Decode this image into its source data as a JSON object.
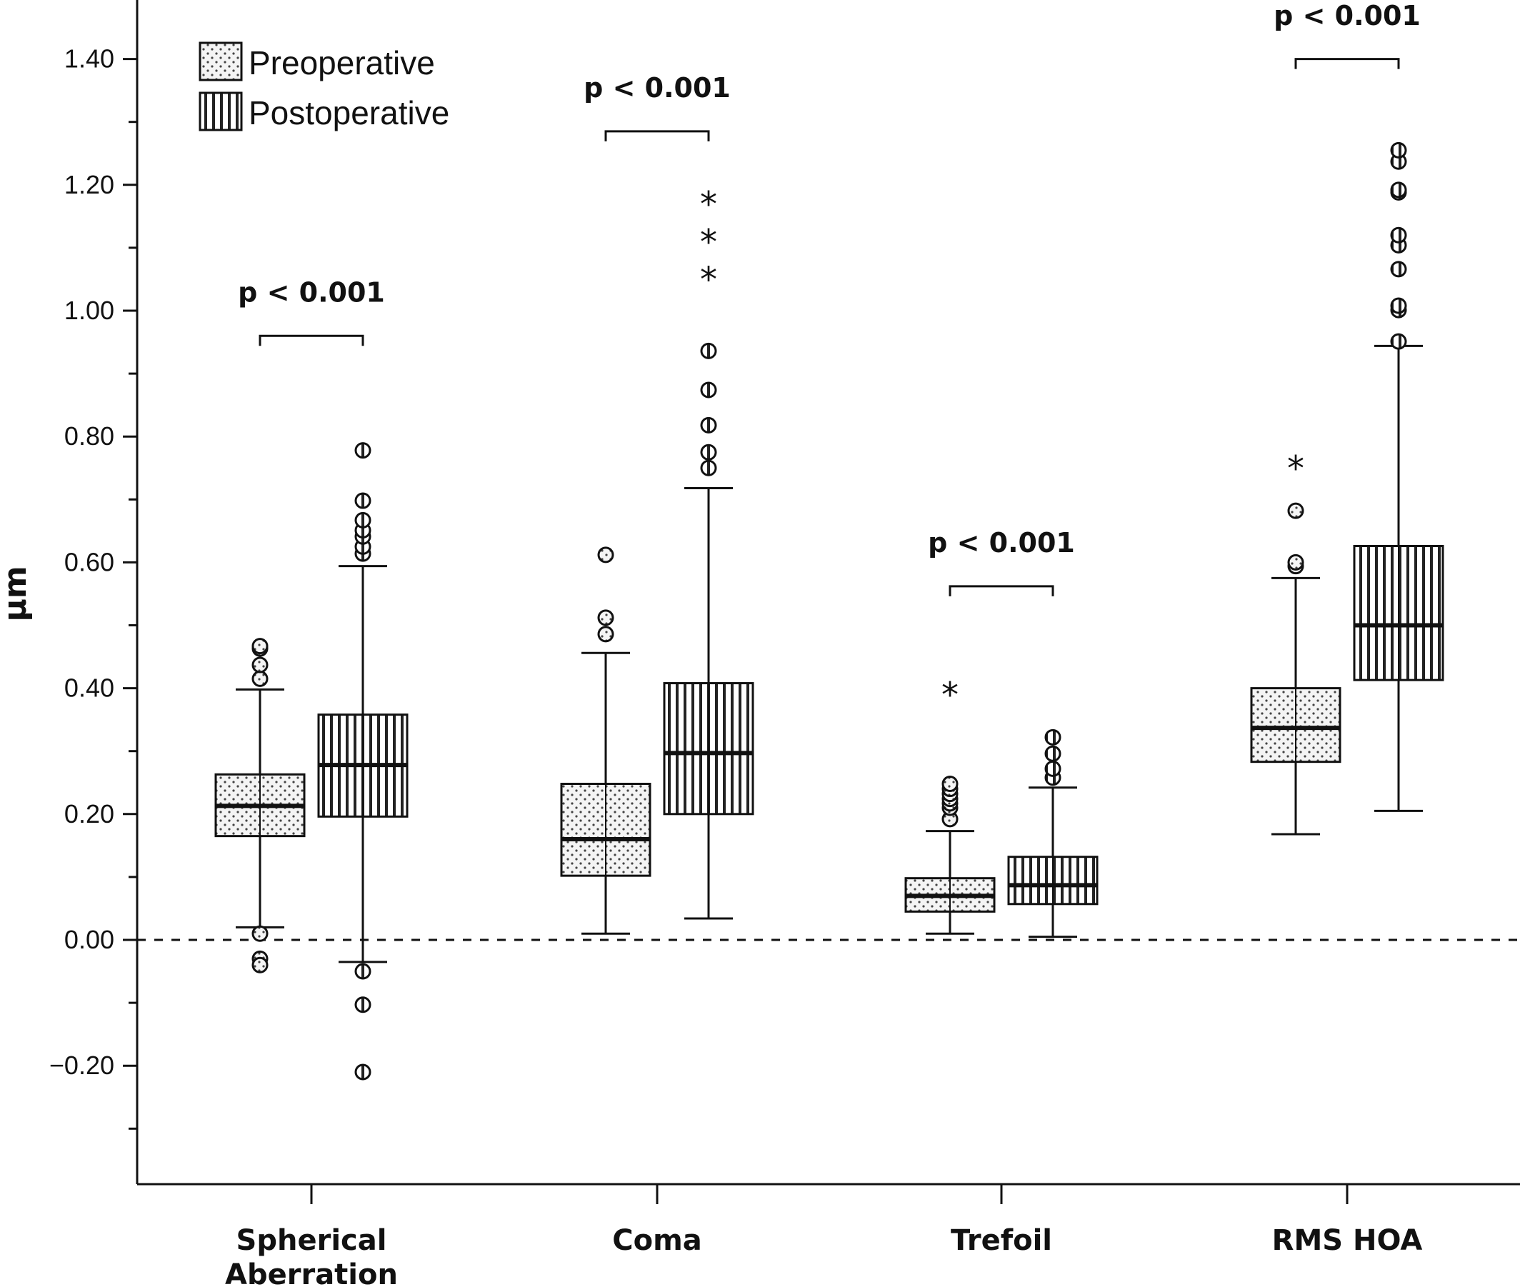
{
  "chart_data": {
    "type": "boxplot",
    "ylabel": "µm",
    "xlabel": "",
    "ylim": [
      -0.39,
      1.5
    ],
    "yticks": [
      -0.2,
      0.0,
      0.2,
      0.4,
      0.6,
      0.8,
      1.0,
      1.2,
      1.4
    ],
    "ytick_labels": [
      "−0.20",
      "0.00",
      "0.20",
      "0.40",
      "0.60",
      "0.80",
      "1.00",
      "1.20",
      "1.40"
    ],
    "categories": [
      {
        "name": "spherical",
        "label_lines": [
          "Spherical",
          "Aberration"
        ]
      },
      {
        "name": "coma",
        "label_lines": [
          "Coma"
        ]
      },
      {
        "name": "trefoil",
        "label_lines": [
          "Trefoil"
        ]
      },
      {
        "name": "rms-hoa",
        "label_lines": [
          "RMS HOA"
        ]
      }
    ],
    "reference_line": 0.0,
    "legend": {
      "placement": "top-left",
      "entries": [
        {
          "label": "Preoperative",
          "pattern": "dots"
        },
        {
          "label": "Postoperative",
          "pattern": "vertical-stripes"
        }
      ]
    },
    "series": [
      {
        "name": "Preoperative",
        "pattern": "dots",
        "boxes": [
          {
            "q1": 0.165,
            "median": 0.213,
            "q3": 0.263,
            "whisker_low": 0.02,
            "whisker_high": 0.398,
            "outliers": [
              0.415,
              0.437,
              0.463,
              0.467,
              0.01,
              -0.03,
              -0.04
            ],
            "extremes": []
          },
          {
            "q1": 0.102,
            "median": 0.16,
            "q3": 0.248,
            "whisker_low": 0.01,
            "whisker_high": 0.456,
            "outliers": [
              0.486,
              0.512,
              0.612
            ],
            "extremes": []
          },
          {
            "q1": 0.045,
            "median": 0.07,
            "q3": 0.098,
            "whisker_low": 0.01,
            "whisker_high": 0.173,
            "outliers": [
              0.192,
              0.21,
              0.217,
              0.224,
              0.232,
              0.24,
              0.248
            ],
            "extremes": [
              0.4
            ]
          },
          {
            "q1": 0.283,
            "median": 0.337,
            "q3": 0.4,
            "whisker_low": 0.168,
            "whisker_high": 0.575,
            "outliers": [
              0.594,
              0.6,
              0.682
            ],
            "extremes": [
              0.76
            ]
          }
        ]
      },
      {
        "name": "Postoperative",
        "pattern": "vertical-stripes",
        "boxes": [
          {
            "q1": 0.196,
            "median": 0.278,
            "q3": 0.358,
            "whisker_low": -0.035,
            "whisker_high": 0.594,
            "outliers": [
              0.614,
              0.625,
              0.641,
              0.651,
              0.667,
              0.698,
              0.778,
              -0.05,
              -0.103,
              -0.21
            ],
            "extremes": []
          },
          {
            "q1": 0.2,
            "median": 0.297,
            "q3": 0.408,
            "whisker_low": 0.034,
            "whisker_high": 0.718,
            "outliers": [
              0.75,
              0.775,
              0.818,
              0.874,
              0.936
            ],
            "extremes": [
              1.06,
              1.12,
              1.18
            ]
          },
          {
            "q1": 0.057,
            "median": 0.087,
            "q3": 0.132,
            "whisker_low": 0.005,
            "whisker_high": 0.242,
            "outliers": [
              0.258,
              0.272,
              0.296,
              0.322
            ],
            "extremes": []
          },
          {
            "q1": 0.413,
            "median": 0.5,
            "q3": 0.626,
            "whisker_low": 0.205,
            "whisker_high": 0.944,
            "outliers": [
              0.951,
              1.001,
              1.008,
              1.066,
              1.104,
              1.12,
              1.188,
              1.192,
              1.237,
              1.255
            ],
            "extremes": []
          }
        ]
      }
    ],
    "annotations": [
      {
        "category_index": 0,
        "text": "p < 0.001",
        "bracket_y": 0.96,
        "text_y": 1.03
      },
      {
        "category_index": 1,
        "text": "p < 0.001",
        "bracket_y": 1.285,
        "text_y": 1.355
      },
      {
        "category_index": 2,
        "text": "p < 0.001",
        "bracket_y": 0.562,
        "text_y": 0.632
      },
      {
        "category_index": 3,
        "text": "p < 0.001",
        "bracket_y": 1.4,
        "text_y": 1.47
      }
    ]
  }
}
